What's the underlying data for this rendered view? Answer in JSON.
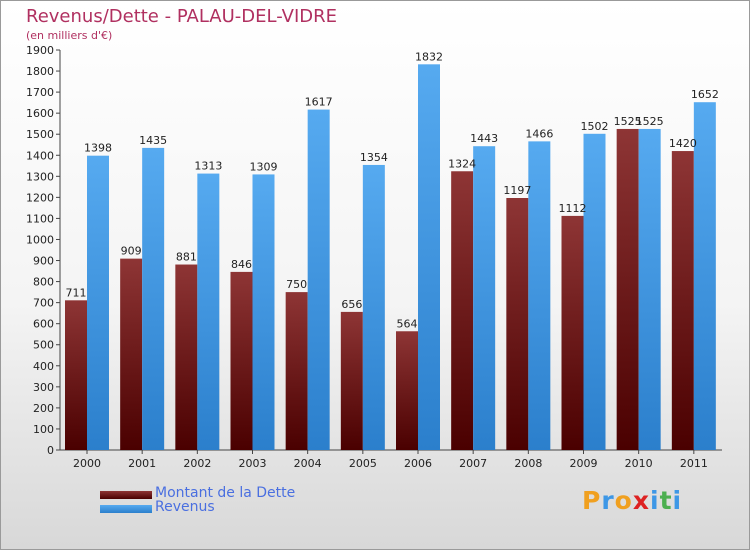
{
  "header": {
    "title": "Revenus/Dette - PALAU-DEL-VIDRE",
    "subtitle": "(en milliers d'€)"
  },
  "logo": {
    "text": "Proxiti"
  },
  "colors": {
    "dette": "#7a1a1a",
    "revenus": "#3d97e6"
  },
  "chart_data": {
    "type": "bar",
    "categories": [
      "2000",
      "2001",
      "2002",
      "2003",
      "2004",
      "2005",
      "2006",
      "2007",
      "2008",
      "2009",
      "2010",
      "2011"
    ],
    "series": [
      {
        "name": "Montant de la Dette",
        "values": [
          711,
          909,
          881,
          846,
          750,
          656,
          564,
          1324,
          1197,
          1112,
          1525,
          1420
        ]
      },
      {
        "name": "Revenus",
        "values": [
          1398,
          1435,
          1313,
          1309,
          1617,
          1354,
          1832,
          1443,
          1466,
          1502,
          1525,
          1652
        ]
      }
    ],
    "ylim": [
      0,
      1900
    ],
    "ytick_step": 100,
    "grid": false,
    "legend": "bottom-left",
    "data_labels": true
  }
}
